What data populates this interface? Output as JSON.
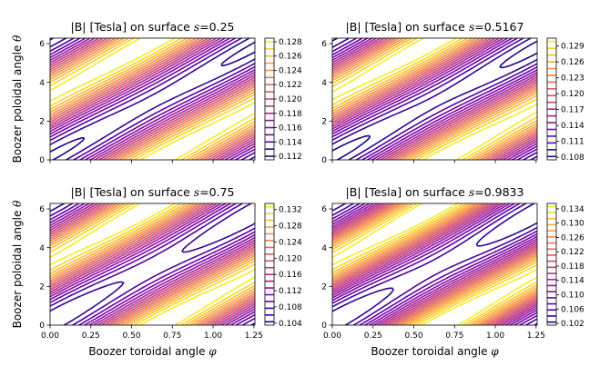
{
  "figure": {
    "xlabel_text": "Boozer toroidal angle ",
    "xlabel_symbol": "φ",
    "ylabel_text": "Boozer poloidal angle ",
    "ylabel_symbol": "θ",
    "title_prefix": "|B| [Tesla] on surface ",
    "title_var": "s",
    "title_eq": "="
  },
  "chart_data": [
    {
      "type": "contour",
      "title": "|B| [Tesla] on surface s=0.25",
      "surface_s": "0.25",
      "xlabel": "",
      "ylabel": "Boozer poloidal angle θ",
      "xlim": [
        0,
        1.2566
      ],
      "ylim": [
        0,
        6.2832
      ],
      "xticks": [
        "0.00",
        "0.25",
        "0.50",
        "0.75",
        "1.00",
        "1.25"
      ],
      "yticks": [
        "0",
        "2",
        "4",
        "6"
      ],
      "colorbar_ticks": [
        "0.112",
        "0.114",
        "0.116",
        "0.118",
        "0.120",
        "0.122",
        "0.124",
        "0.126",
        "0.128"
      ],
      "levels_range": [
        0.1115,
        0.1285
      ],
      "n_levels": 17,
      "colormap": "plasma",
      "field": {
        "b0": 0.12,
        "b1": 0.0083,
        "b2": 0.0005,
        "n_fp": 5,
        "min_theta": 3.0,
        "min_phi": 0.63
      }
    },
    {
      "type": "contour",
      "title": "|B| [Tesla] on surface s=0.5167",
      "surface_s": "0.5167",
      "xlabel": "",
      "ylabel": "",
      "xlim": [
        0,
        1.2566
      ],
      "ylim": [
        0,
        6.2832
      ],
      "xticks": [
        "0.00",
        "0.25",
        "0.50",
        "0.75",
        "1.00",
        "1.25"
      ],
      "yticks": [
        "0",
        "2",
        "4",
        "6"
      ],
      "colorbar_ticks": [
        "0.108",
        "0.111",
        "0.114",
        "0.117",
        "0.120",
        "0.123",
        "0.126",
        "0.129"
      ],
      "levels_range": [
        0.1075,
        0.1305
      ],
      "n_levels": 18,
      "colormap": "plasma",
      "field": {
        "b0": 0.1188,
        "b1": 0.0112,
        "b2": 0.0008,
        "n_fp": 5,
        "min_theta": 3.0,
        "min_phi": 0.63
      }
    },
    {
      "type": "contour",
      "title": "|B| [Tesla] on surface s=0.75",
      "surface_s": "0.75",
      "xlabel": "Boozer toroidal angle φ",
      "ylabel": "Boozer poloidal angle θ",
      "xlim": [
        0,
        1.2566
      ],
      "ylim": [
        0,
        6.2832
      ],
      "xticks": [
        "0.00",
        "0.25",
        "0.50",
        "0.75",
        "1.00",
        "1.25"
      ],
      "yticks": [
        "0",
        "2",
        "4",
        "6"
      ],
      "colorbar_ticks": [
        "0.104",
        "0.108",
        "0.112",
        "0.116",
        "0.120",
        "0.124",
        "0.128",
        "0.132"
      ],
      "levels_range": [
        0.1035,
        0.1335
      ],
      "n_levels": 18,
      "colormap": "plasma",
      "field": {
        "b0": 0.1185,
        "b1": 0.0143,
        "b2": 0.0012,
        "n_fp": 5,
        "min_theta": 3.0,
        "min_phi": 0.63
      }
    },
    {
      "type": "contour",
      "title": "|B| [Tesla] on surface s=0.9833",
      "surface_s": "0.9833",
      "xlabel": "Boozer toroidal angle φ",
      "ylabel": "",
      "xlim": [
        0,
        1.2566
      ],
      "ylim": [
        0,
        6.2832
      ],
      "xticks": [
        "0.00",
        "0.25",
        "0.50",
        "0.75",
        "1.00",
        "1.25"
      ],
      "yticks": [
        "0",
        "2",
        "4",
        "6"
      ],
      "colorbar_ticks": [
        "0.102",
        "0.106",
        "0.110",
        "0.114",
        "0.118",
        "0.122",
        "0.126",
        "0.130",
        "0.134"
      ],
      "levels_range": [
        0.1015,
        0.1355
      ],
      "n_levels": 20,
      "colormap": "plasma",
      "field": {
        "b0": 0.1185,
        "b1": 0.0163,
        "b2": 0.0015,
        "n_fp": 5,
        "min_theta": 3.0,
        "min_phi": 0.63
      }
    }
  ]
}
